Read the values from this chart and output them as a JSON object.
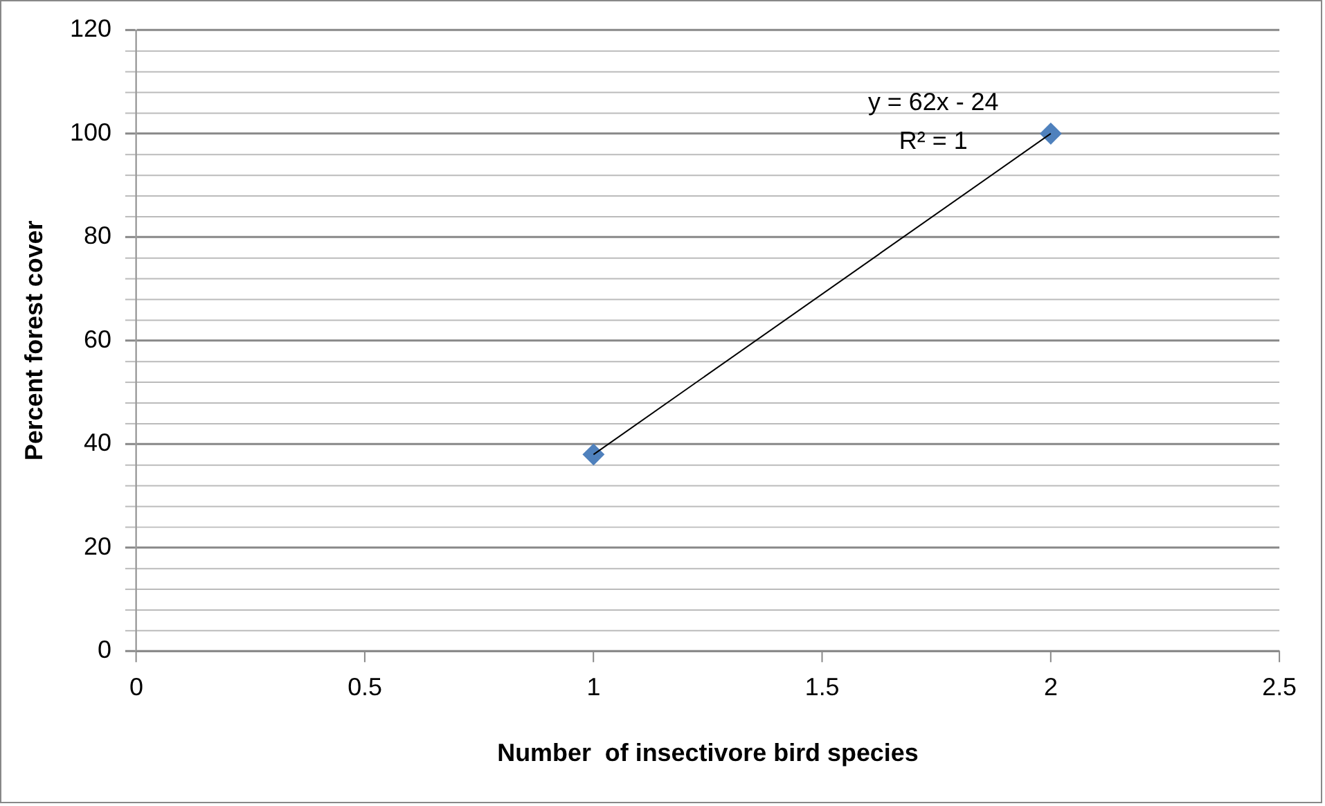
{
  "chart_data": {
    "type": "scatter",
    "xlabel": "Number  of insectivore bird species",
    "ylabel": "Percent forest cover",
    "xlim": [
      0,
      2.5
    ],
    "xticks": [
      0,
      0.5,
      1,
      1.5,
      2,
      2.5
    ],
    "ylim": [
      0,
      120
    ],
    "yticks": [
      0,
      {
        "value": 4,
        "label": null
      },
      {
        "value": 8,
        "label": null
      },
      {
        "value": 12,
        "label": null
      },
      {
        "value": 16,
        "label": null
      },
      20,
      {
        "value": 24,
        "label": null
      },
      {
        "value": 28,
        "label": null
      },
      {
        "value": 32,
        "label": null
      },
      {
        "value": 36,
        "label": null
      },
      40,
      {
        "value": 44,
        "label": null
      },
      {
        "value": 48,
        "label": null
      },
      {
        "value": 52,
        "label": null
      },
      {
        "value": 56,
        "label": null
      },
      60,
      {
        "value": 64,
        "label": null
      },
      {
        "value": 68,
        "label": null
      },
      {
        "value": 72,
        "label": null
      },
      {
        "value": 76,
        "label": null
      },
      80,
      {
        "value": 84,
        "label": null
      },
      {
        "value": 88,
        "label": null
      },
      {
        "value": 92,
        "label": null
      },
      {
        "value": 96,
        "label": null
      },
      100,
      {
        "value": 104,
        "label": null
      },
      {
        "value": 108,
        "label": null
      },
      {
        "value": 112,
        "label": null
      },
      {
        "value": 116,
        "label": null
      },
      120
    ],
    "grid": "y",
    "legend": false,
    "x": [
      1,
      2
    ],
    "series": [
      {
        "type": "scatter",
        "values": [
          38,
          100
        ],
        "color": "#4f81bd",
        "marker": "diamond"
      },
      {
        "type": "line",
        "values": [
          38,
          100
        ],
        "color": "#000000",
        "marker": "none",
        "line_style": "solid"
      }
    ],
    "annotations": [
      "y = 62x - 24",
      "R² = 1"
    ]
  }
}
